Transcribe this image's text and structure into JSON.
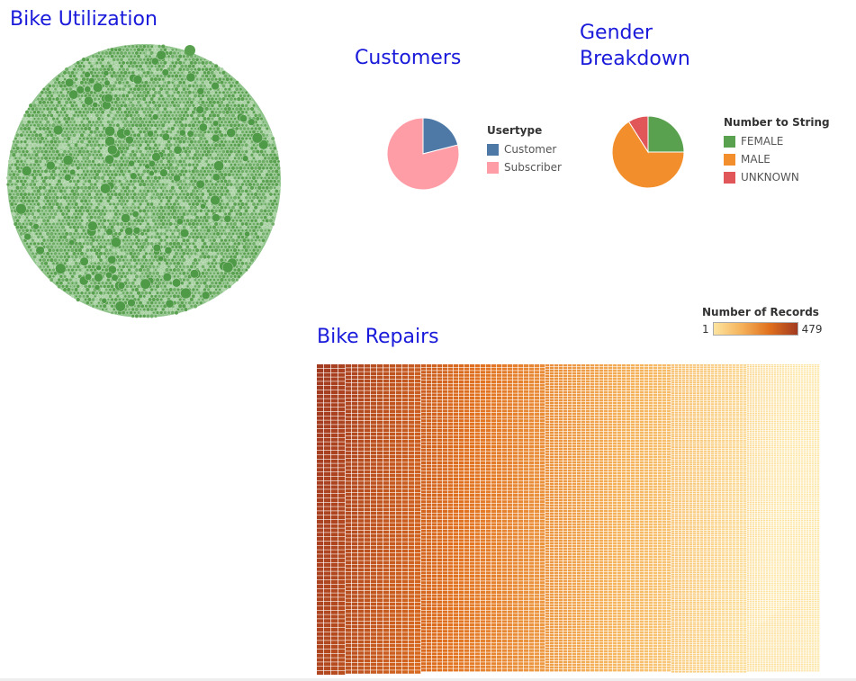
{
  "titles": {
    "bike_utilization": "Bike Utilization",
    "customers": "Customers",
    "gender_line1": "Gender",
    "gender_line2": "Breakdown",
    "bike_repairs": "Bike Repairs"
  },
  "colors": {
    "title": "#1a1adb",
    "bubble": "#59a14f",
    "customer": "#4e79a7",
    "subscriber": "#ff9da7",
    "female": "#59a14f",
    "male": "#f28e2b",
    "unknown": "#e15759",
    "scale_low": "#fde4a0",
    "scale_high": "#a23a20"
  },
  "chart_data": [
    {
      "type": "bubble",
      "title": "Bike Utilization"
    },
    {
      "type": "pie",
      "title": "Customers",
      "legend_title": "Usertype",
      "legend_position": "right",
      "slices": [
        {
          "label": "Customer",
          "value": 0.21
        },
        {
          "label": "Subscriber",
          "value": 0.79
        }
      ]
    },
    {
      "type": "pie",
      "title": "Gender Breakdown",
      "legend_title": "Number to String",
      "legend_position": "right",
      "slices": [
        {
          "label": "FEMALE",
          "value": 0.25
        },
        {
          "label": "MALE",
          "value": 0.66
        },
        {
          "label": "UNKNOWN",
          "value": 0.09
        }
      ]
    },
    {
      "type": "heatmap",
      "title": "Bike Repairs",
      "legend_title": "Number of Records",
      "scale_min": 1,
      "scale_max": 479
    }
  ]
}
